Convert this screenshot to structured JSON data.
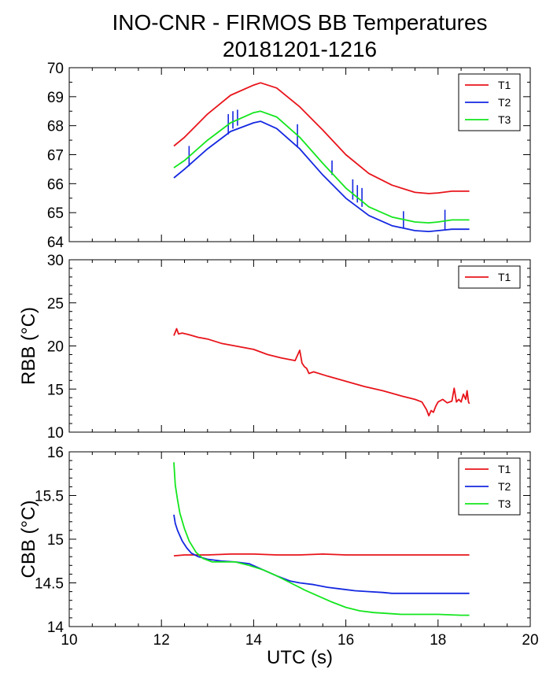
{
  "figure": {
    "title_line1": "INO-CNR - FIRMOS BB Temperatures",
    "title_line2": "20181201-1216"
  },
  "colors": {
    "T1": "#e8141b",
    "T2": "#1428e0",
    "T3": "#14e61e"
  },
  "chart_data": [
    {
      "type": "line",
      "panel": "top",
      "ylabel": "",
      "xlim": [
        10,
        20
      ],
      "ylim": [
        64,
        70
      ],
      "y_ticks": [
        64,
        65,
        66,
        67,
        68,
        69,
        70
      ],
      "x_ticks": [
        10,
        12,
        14,
        16,
        18,
        20
      ],
      "show_x_tick_labels": false,
      "legend": "top-right",
      "series": [
        {
          "name": "T1",
          "color": "T1",
          "x": [
            12.27,
            12.5,
            13.0,
            13.5,
            14.0,
            14.15,
            14.5,
            15.0,
            15.5,
            16.0,
            16.5,
            17.0,
            17.5,
            17.8,
            18.0,
            18.3,
            18.68
          ],
          "y": [
            67.3,
            67.6,
            68.4,
            69.05,
            69.4,
            69.48,
            69.3,
            68.65,
            67.85,
            67.0,
            66.35,
            65.95,
            65.7,
            65.66,
            65.68,
            65.74,
            65.74
          ]
        },
        {
          "name": "T2",
          "color": "T2",
          "x": [
            12.27,
            12.5,
            13.0,
            13.5,
            14.0,
            14.15,
            14.5,
            15.0,
            15.5,
            16.0,
            16.5,
            17.0,
            17.5,
            17.8,
            18.0,
            18.3,
            18.68
          ],
          "y": [
            66.2,
            66.5,
            67.2,
            67.8,
            68.1,
            68.15,
            67.9,
            67.2,
            66.3,
            65.5,
            64.9,
            64.55,
            64.38,
            64.35,
            64.38,
            64.43,
            64.43
          ],
          "spikes": [
            [
              12.6,
              66.6,
              67.3
            ],
            [
              13.45,
              67.7,
              68.4
            ],
            [
              13.55,
              67.9,
              68.5
            ],
            [
              13.65,
              68.0,
              68.55
            ],
            [
              14.95,
              67.25,
              68.05
            ],
            [
              15.7,
              66.3,
              66.8
            ],
            [
              16.15,
              65.45,
              66.15
            ],
            [
              16.25,
              65.35,
              65.95
            ],
            [
              16.35,
              65.2,
              65.85
            ],
            [
              17.25,
              64.45,
              65.05
            ],
            [
              18.15,
              64.4,
              65.1
            ]
          ]
        },
        {
          "name": "T3",
          "color": "T3",
          "x": [
            12.27,
            12.5,
            13.0,
            13.5,
            14.0,
            14.15,
            14.5,
            15.0,
            15.5,
            16.0,
            16.5,
            17.0,
            17.5,
            17.8,
            18.0,
            18.3,
            18.68
          ],
          "y": [
            66.55,
            66.8,
            67.5,
            68.1,
            68.45,
            68.5,
            68.3,
            67.6,
            66.7,
            65.85,
            65.2,
            64.85,
            64.68,
            64.65,
            64.68,
            64.75,
            64.75
          ]
        }
      ]
    },
    {
      "type": "line",
      "panel": "middle",
      "ylabel": "RBB (°C)",
      "xlim": [
        10,
        20
      ],
      "ylim": [
        10,
        30
      ],
      "y_ticks": [
        10,
        15,
        20,
        25,
        30
      ],
      "x_ticks": [
        10,
        12,
        14,
        16,
        18,
        20
      ],
      "show_x_tick_labels": false,
      "legend": "top-right",
      "series": [
        {
          "name": "T1",
          "color": "T1",
          "x": [
            12.27,
            12.3,
            12.33,
            12.37,
            12.45,
            12.6,
            12.8,
            13.0,
            13.3,
            13.6,
            14.0,
            14.3,
            14.6,
            14.9,
            15.0,
            15.05,
            15.1,
            15.15,
            15.2,
            15.3,
            15.6,
            16.0,
            16.4,
            16.8,
            17.2,
            17.5,
            17.65,
            17.75,
            17.8,
            17.85,
            17.9,
            17.95,
            18.0,
            18.1,
            18.2,
            18.3,
            18.35,
            18.4,
            18.45,
            18.5,
            18.55,
            18.6,
            18.63,
            18.66,
            18.68
          ],
          "y": [
            21.2,
            21.6,
            22.0,
            21.4,
            21.5,
            21.3,
            21.0,
            20.8,
            20.3,
            20.0,
            19.6,
            19.0,
            18.6,
            18.3,
            19.5,
            18.0,
            17.6,
            17.4,
            16.8,
            17.0,
            16.5,
            15.9,
            15.3,
            14.8,
            14.2,
            13.8,
            13.5,
            12.6,
            11.9,
            12.5,
            12.3,
            13.0,
            13.5,
            13.8,
            13.4,
            13.6,
            15.1,
            13.5,
            13.8,
            13.5,
            14.4,
            13.8,
            14.8,
            13.5,
            13.3
          ]
        }
      ]
    },
    {
      "type": "line",
      "panel": "bottom",
      "ylabel": "CBB (°C)",
      "xlabel": "UTC (s)",
      "xlim": [
        10,
        20
      ],
      "ylim": [
        14,
        16
      ],
      "y_ticks": [
        14,
        14.5,
        15,
        15.5,
        16
      ],
      "y_tick_labels": [
        "14",
        "14.5",
        "15",
        "15.5",
        "16"
      ],
      "x_ticks": [
        10,
        12,
        14,
        16,
        18,
        20
      ],
      "x_tick_labels": [
        "10",
        "12",
        "14",
        "16",
        "18",
        "20"
      ],
      "show_x_tick_labels": true,
      "legend": "top-right",
      "series": [
        {
          "name": "T1",
          "color": "T1",
          "x": [
            12.27,
            12.5,
            13.0,
            13.5,
            14.0,
            14.5,
            15.0,
            15.5,
            16.0,
            16.5,
            17.0,
            17.5,
            18.0,
            18.5,
            18.68
          ],
          "y": [
            14.81,
            14.82,
            14.82,
            14.83,
            14.83,
            14.82,
            14.82,
            14.83,
            14.82,
            14.82,
            14.82,
            14.82,
            14.82,
            14.82,
            14.82
          ]
        },
        {
          "name": "T2",
          "color": "T2",
          "x": [
            12.27,
            12.3,
            12.35,
            12.45,
            12.55,
            12.65,
            12.8,
            13.0,
            13.3,
            13.6,
            13.9,
            14.2,
            14.5,
            14.8,
            15.0,
            15.3,
            15.6,
            15.9,
            16.2,
            16.5,
            16.8,
            17.0,
            17.5,
            18.0,
            18.5,
            18.68
          ],
          "y": [
            15.28,
            15.18,
            15.1,
            14.98,
            14.9,
            14.84,
            14.8,
            14.77,
            14.75,
            14.74,
            14.72,
            14.65,
            14.58,
            14.52,
            14.5,
            14.48,
            14.45,
            14.43,
            14.41,
            14.4,
            14.39,
            14.38,
            14.38,
            14.38,
            14.38,
            14.38
          ]
        },
        {
          "name": "T3",
          "color": "T3",
          "x": [
            12.27,
            12.3,
            12.35,
            12.4,
            12.5,
            12.6,
            12.75,
            12.9,
            13.1,
            13.3,
            13.6,
            13.9,
            14.2,
            14.5,
            14.8,
            15.1,
            15.4,
            15.7,
            16.0,
            16.3,
            16.6,
            16.9,
            17.2,
            17.5,
            18.0,
            18.5,
            18.68
          ],
          "y": [
            15.88,
            15.62,
            15.45,
            15.3,
            15.12,
            14.98,
            14.85,
            14.78,
            14.74,
            14.74,
            14.74,
            14.7,
            14.65,
            14.58,
            14.5,
            14.42,
            14.35,
            14.28,
            14.22,
            14.18,
            14.16,
            14.15,
            14.14,
            14.14,
            14.14,
            14.13,
            14.13
          ]
        }
      ]
    }
  ]
}
